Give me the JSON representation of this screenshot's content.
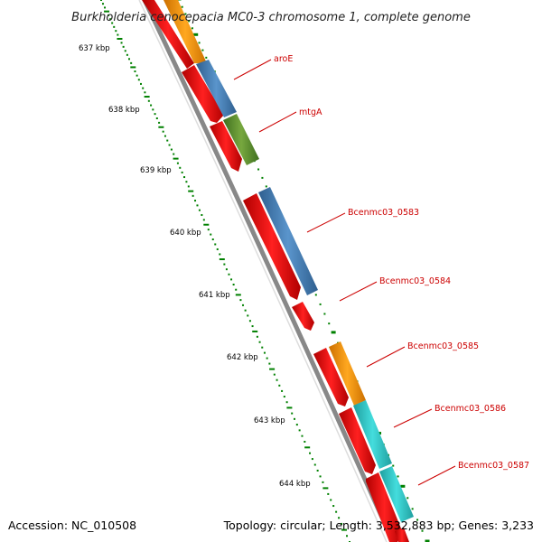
{
  "title": "Burkholderia cenocepacia MC0-3 chromosome 1, complete genome",
  "footer": {
    "accession": "Accession: NC_010508",
    "topology": "Topology: circular; Length: 3,532,883 bp; Genes: 3,233"
  },
  "scale_labels": [
    "637 kbp",
    "638 kbp",
    "639 kbp",
    "640 kbp",
    "641 kbp",
    "642 kbp",
    "643 kbp",
    "644 kbp"
  ],
  "gene_labels": [
    "aroE",
    "mtgA",
    "Bcenmc03_0583",
    "Bcenmc03_0584",
    "Bcenmc03_0585",
    "Bcenmc03_0586",
    "Bcenmc03_0587"
  ],
  "colors": {
    "cds": "#ff0000",
    "cog_orange": "#ff9900",
    "cog_blue": "#4d88bf",
    "cog_olive": "#669933",
    "cog_cyan": "#33cccc",
    "backbone": "#888888",
    "ticks": "#008000",
    "label": "#cc0000"
  }
}
